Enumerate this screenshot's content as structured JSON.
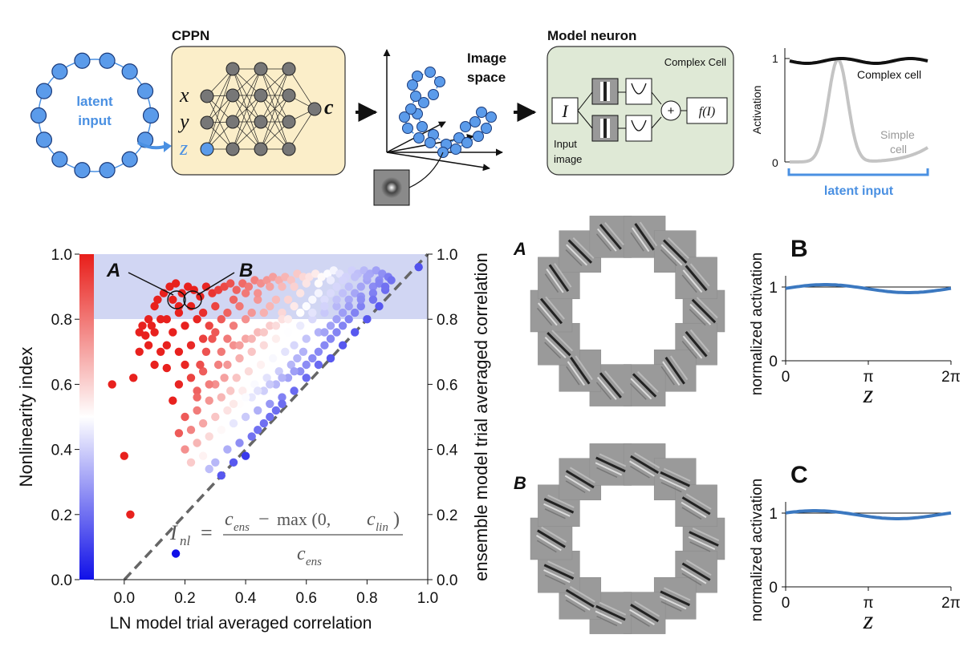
{
  "top": {
    "latent_label_1": "latent",
    "latent_label_2": "input",
    "cppn_title": "CPPN",
    "cppn_inputs": [
      "x",
      "y",
      "z"
    ],
    "cppn_output": "c",
    "image_space_1": "Image",
    "image_space_2": "space",
    "model_neuron_title": "Model neuron",
    "complex_cell_title": "Complex Cell",
    "input_symbol": "I",
    "plus_symbol": "+",
    "f_symbol": "f(I)",
    "input_image_1": "Input",
    "input_image_2": "image",
    "activation_ylabel": "Activation",
    "activation_ticks": [
      "1",
      "0"
    ],
    "complex_cell_label": "Complex cell",
    "simple_cell_1": "Simple",
    "simple_cell_2": "cell",
    "latent_input_label": "latent input"
  },
  "scatter": {
    "ylabel_left": "Nonlinearity index",
    "ylabel_right": "ensemble model trial averaged correlation",
    "xlabel": "LN model trial averaged correlation",
    "xticks": [
      "0.0",
      "0.2",
      "0.4",
      "0.6",
      "0.8",
      "1.0"
    ],
    "yticks": [
      "0.0",
      "0.2",
      "0.4",
      "0.6",
      "0.8",
      "1.0"
    ],
    "cbar_ticks": [
      "0.0",
      "0.2",
      "0.4",
      "0.6",
      "0.8",
      "1.0"
    ],
    "label_A": "A",
    "label_B": "B",
    "formula_lhs": "I",
    "formula_lhs_sub": "nl",
    "formula_eq": "=",
    "formula_num": "c",
    "formula_num_sub": "ens",
    "formula_minus": "−",
    "formula_max": "max (0,",
    "formula_clin": "c",
    "formula_clin_sub": "lin",
    "formula_close": ")",
    "formula_den": "c",
    "formula_den_sub": "ens",
    "colors": {
      "high": "#e8211e",
      "mid": "#ffffff",
      "low": "#1818e0",
      "shade": "#c9cff1"
    }
  },
  "ring_labels": [
    "A",
    "B"
  ],
  "panels": [
    {
      "label": "B",
      "ylabel": "normalized activation",
      "yticks": [
        "1",
        "0"
      ],
      "xticks": [
        "0",
        "π",
        "2π"
      ],
      "xlabel": "z"
    },
    {
      "label": "C",
      "ylabel": "normalized activation",
      "yticks": [
        "1",
        "0"
      ],
      "xticks": [
        "0",
        "π",
        "2π"
      ],
      "xlabel": "z"
    }
  ],
  "chart_data": {
    "type": "scatter",
    "xlabel": "LN model trial averaged correlation",
    "ylabel": "ensemble model trial averaged correlation",
    "xlim": [
      -0.1,
      1.0
    ],
    "ylim": [
      0.0,
      1.0
    ],
    "colorbar_label": "Nonlinearity index",
    "colorbar_range": [
      0.0,
      1.0
    ],
    "highlight_band_y": [
      0.8,
      1.0
    ],
    "diagonal": true,
    "points": [
      [
        -0.04,
        0.6
      ],
      [
        0.02,
        0.2
      ],
      [
        0.0,
        0.38
      ],
      [
        0.03,
        0.62
      ],
      [
        0.05,
        0.7
      ],
      [
        0.07,
        0.75
      ],
      [
        0.09,
        0.78
      ],
      [
        0.11,
        0.86
      ],
      [
        0.13,
        0.88
      ],
      [
        0.15,
        0.9
      ],
      [
        0.17,
        0.91
      ],
      [
        0.19,
        0.88
      ],
      [
        0.21,
        0.9
      ],
      [
        0.23,
        0.89
      ],
      [
        0.25,
        0.87
      ],
      [
        0.27,
        0.9
      ],
      [
        0.29,
        0.88
      ],
      [
        0.31,
        0.89
      ],
      [
        0.33,
        0.9
      ],
      [
        0.35,
        0.91
      ],
      [
        0.37,
        0.89
      ],
      [
        0.39,
        0.91
      ],
      [
        0.41,
        0.9
      ],
      [
        0.43,
        0.92
      ],
      [
        0.45,
        0.91
      ],
      [
        0.47,
        0.92
      ],
      [
        0.49,
        0.93
      ],
      [
        0.51,
        0.92
      ],
      [
        0.53,
        0.93
      ],
      [
        0.55,
        0.92
      ],
      [
        0.57,
        0.94
      ],
      [
        0.59,
        0.93
      ],
      [
        0.61,
        0.93
      ],
      [
        0.63,
        0.94
      ],
      [
        0.65,
        0.93
      ],
      [
        0.67,
        0.94
      ],
      [
        0.69,
        0.95
      ],
      [
        0.71,
        0.94
      ],
      [
        0.73,
        0.93
      ],
      [
        0.75,
        0.95
      ],
      [
        0.77,
        0.94
      ],
      [
        0.79,
        0.95
      ],
      [
        0.81,
        0.94
      ],
      [
        0.83,
        0.95
      ],
      [
        0.85,
        0.94
      ],
      [
        0.87,
        0.93
      ],
      [
        0.97,
        0.96
      ],
      [
        0.05,
        0.76
      ],
      [
        0.08,
        0.72
      ],
      [
        0.1,
        0.66
      ],
      [
        0.12,
        0.7
      ],
      [
        0.14,
        0.65
      ],
      [
        0.16,
        0.55
      ],
      [
        0.18,
        0.6
      ],
      [
        0.2,
        0.66
      ],
      [
        0.22,
        0.62
      ],
      [
        0.24,
        0.58
      ],
      [
        0.26,
        0.64
      ],
      [
        0.28,
        0.55
      ],
      [
        0.3,
        0.6
      ],
      [
        0.14,
        0.8
      ],
      [
        0.16,
        0.76
      ],
      [
        0.18,
        0.82
      ],
      [
        0.2,
        0.78
      ],
      [
        0.22,
        0.84
      ],
      [
        0.24,
        0.8
      ],
      [
        0.26,
        0.82
      ],
      [
        0.28,
        0.78
      ],
      [
        0.3,
        0.84
      ],
      [
        0.32,
        0.8
      ],
      [
        0.34,
        0.82
      ],
      [
        0.36,
        0.78
      ],
      [
        0.38,
        0.84
      ],
      [
        0.4,
        0.8
      ],
      [
        0.42,
        0.82
      ],
      [
        0.44,
        0.86
      ],
      [
        0.46,
        0.82
      ],
      [
        0.48,
        0.84
      ],
      [
        0.5,
        0.86
      ],
      [
        0.52,
        0.82
      ],
      [
        0.54,
        0.86
      ],
      [
        0.56,
        0.84
      ],
      [
        0.58,
        0.88
      ],
      [
        0.6,
        0.84
      ],
      [
        0.62,
        0.86
      ],
      [
        0.64,
        0.88
      ],
      [
        0.66,
        0.86
      ],
      [
        0.68,
        0.88
      ],
      [
        0.7,
        0.9
      ],
      [
        0.72,
        0.88
      ],
      [
        0.74,
        0.9
      ],
      [
        0.76,
        0.88
      ],
      [
        0.78,
        0.9
      ],
      [
        0.8,
        0.92
      ],
      [
        0.82,
        0.9
      ],
      [
        0.84,
        0.92
      ],
      [
        0.2,
        0.5
      ],
      [
        0.22,
        0.46
      ],
      [
        0.24,
        0.52
      ],
      [
        0.26,
        0.48
      ],
      [
        0.28,
        0.44
      ],
      [
        0.3,
        0.5
      ],
      [
        0.32,
        0.46
      ],
      [
        0.34,
        0.52
      ],
      [
        0.36,
        0.48
      ],
      [
        0.38,
        0.54
      ],
      [
        0.4,
        0.5
      ],
      [
        0.42,
        0.56
      ],
      [
        0.44,
        0.52
      ],
      [
        0.46,
        0.58
      ],
      [
        0.48,
        0.54
      ],
      [
        0.5,
        0.6
      ],
      [
        0.52,
        0.56
      ],
      [
        0.54,
        0.62
      ],
      [
        0.56,
        0.58
      ],
      [
        0.58,
        0.64
      ],
      [
        0.6,
        0.66
      ],
      [
        0.62,
        0.68
      ],
      [
        0.64,
        0.7
      ],
      [
        0.66,
        0.72
      ],
      [
        0.68,
        0.74
      ],
      [
        0.7,
        0.76
      ],
      [
        0.72,
        0.78
      ],
      [
        0.74,
        0.8
      ],
      [
        0.76,
        0.82
      ],
      [
        0.78,
        0.84
      ],
      [
        0.32,
        0.7
      ],
      [
        0.34,
        0.66
      ],
      [
        0.36,
        0.72
      ],
      [
        0.38,
        0.68
      ],
      [
        0.4,
        0.74
      ],
      [
        0.42,
        0.7
      ],
      [
        0.44,
        0.76
      ],
      [
        0.46,
        0.72
      ],
      [
        0.48,
        0.78
      ],
      [
        0.5,
        0.74
      ],
      [
        0.52,
        0.8
      ],
      [
        0.54,
        0.76
      ],
      [
        0.56,
        0.72
      ],
      [
        0.58,
        0.78
      ],
      [
        0.6,
        0.74
      ],
      [
        0.62,
        0.8
      ],
      [
        0.64,
        0.76
      ],
      [
        0.66,
        0.82
      ],
      [
        0.68,
        0.78
      ],
      [
        0.7,
        0.84
      ],
      [
        0.72,
        0.82
      ],
      [
        0.34,
        0.4
      ],
      [
        0.36,
        0.36
      ],
      [
        0.38,
        0.42
      ],
      [
        0.4,
        0.38
      ],
      [
        0.42,
        0.44
      ],
      [
        0.44,
        0.46
      ],
      [
        0.46,
        0.48
      ],
      [
        0.48,
        0.5
      ],
      [
        0.5,
        0.52
      ],
      [
        0.52,
        0.54
      ],
      [
        0.17,
        0.08
      ],
      [
        0.18,
        0.45
      ],
      [
        0.2,
        0.4
      ],
      [
        0.22,
        0.36
      ],
      [
        0.24,
        0.42
      ],
      [
        0.26,
        0.38
      ],
      [
        0.28,
        0.34
      ],
      [
        0.3,
        0.36
      ],
      [
        0.32,
        0.32
      ],
      [
        0.25,
        0.66
      ],
      [
        0.27,
        0.7
      ],
      [
        0.29,
        0.74
      ],
      [
        0.31,
        0.66
      ],
      [
        0.33,
        0.62
      ],
      [
        0.35,
        0.58
      ],
      [
        0.37,
        0.62
      ],
      [
        0.39,
        0.58
      ],
      [
        0.41,
        0.64
      ],
      [
        0.43,
        0.6
      ],
      [
        0.45,
        0.66
      ],
      [
        0.47,
        0.62
      ],
      [
        0.49,
        0.68
      ],
      [
        0.51,
        0.64
      ],
      [
        0.53,
        0.7
      ],
      [
        0.55,
        0.66
      ],
      [
        0.57,
        0.68
      ],
      [
        0.59,
        0.7
      ],
      [
        0.12,
        0.8
      ],
      [
        0.1,
        0.84
      ],
      [
        0.08,
        0.8
      ],
      [
        0.06,
        0.78
      ],
      [
        0.16,
        0.86
      ],
      [
        0.18,
        0.84
      ],
      [
        0.36,
        0.86
      ],
      [
        0.4,
        0.88
      ],
      [
        0.44,
        0.88
      ],
      [
        0.48,
        0.9
      ],
      [
        0.52,
        0.9
      ],
      [
        0.56,
        0.9
      ],
      [
        0.6,
        0.91
      ],
      [
        0.64,
        0.91
      ],
      [
        0.68,
        0.92
      ],
      [
        0.72,
        0.92
      ],
      [
        0.76,
        0.93
      ],
      [
        0.8,
        0.93
      ],
      [
        0.84,
        0.91
      ],
      [
        0.88,
        0.92
      ],
      [
        0.86,
        0.89
      ],
      [
        0.82,
        0.88
      ],
      [
        0.78,
        0.87
      ],
      [
        0.74,
        0.86
      ],
      [
        0.7,
        0.86
      ],
      [
        0.66,
        0.84
      ],
      [
        0.62,
        0.82
      ],
      [
        0.58,
        0.82
      ],
      [
        0.54,
        0.8
      ],
      [
        0.5,
        0.78
      ],
      [
        0.46,
        0.76
      ],
      [
        0.42,
        0.74
      ],
      [
        0.38,
        0.72
      ],
      [
        0.34,
        0.74
      ],
      [
        0.3,
        0.76
      ],
      [
        0.26,
        0.74
      ],
      [
        0.22,
        0.72
      ],
      [
        0.18,
        0.7
      ],
      [
        0.14,
        0.72
      ],
      [
        0.1,
        0.76
      ],
      [
        0.24,
        0.56
      ],
      [
        0.28,
        0.6
      ],
      [
        0.32,
        0.56
      ],
      [
        0.36,
        0.54
      ],
      [
        0.4,
        0.56
      ],
      [
        0.44,
        0.58
      ],
      [
        0.48,
        0.6
      ],
      [
        0.52,
        0.62
      ],
      [
        0.56,
        0.64
      ],
      [
        0.6,
        0.62
      ],
      [
        0.64,
        0.66
      ],
      [
        0.68,
        0.68
      ],
      [
        0.72,
        0.72
      ],
      [
        0.76,
        0.76
      ],
      [
        0.8,
        0.8
      ],
      [
        0.84,
        0.84
      ],
      [
        0.66,
        0.76
      ],
      [
        0.7,
        0.8
      ],
      [
        0.74,
        0.84
      ],
      [
        0.78,
        0.86
      ],
      [
        0.82,
        0.86
      ],
      [
        0.86,
        0.9
      ]
    ],
    "panel_B_curve": {
      "x_range": [
        0,
        6.283
      ],
      "y_mean": 1.0,
      "amplitude": 0.04
    },
    "panel_C_curve": {
      "x_range": [
        0,
        6.283
      ],
      "y_mean": 1.0,
      "amplitude": 0.04
    }
  }
}
